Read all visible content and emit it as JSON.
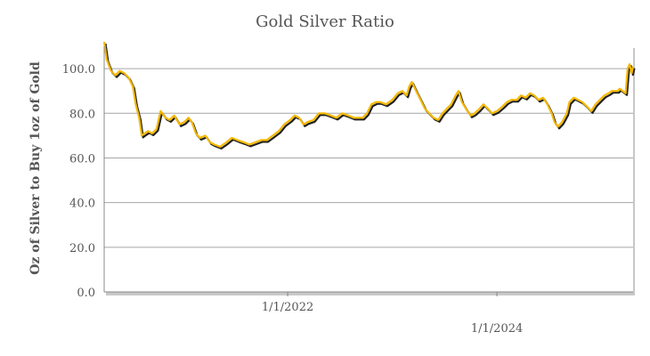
{
  "chart_data": {
    "type": "line",
    "title": "Gold Silver Ratio",
    "ylabel": "Oz of Silver to Buy 1oz of Gold",
    "xlabel": "",
    "ylim": [
      0,
      110
    ],
    "y_ticks": [
      "0.0",
      "20.0",
      "40.0",
      "60.0",
      "80.0",
      "100.0"
    ],
    "y_tick_values": [
      0,
      20,
      40,
      60,
      80,
      100
    ],
    "x_ticks": [
      "1/1/2022",
      "1/1/2024"
    ],
    "x_tick_values": [
      "2022-01-01",
      "2024-01-01"
    ],
    "xlim": [
      "2020-04-01",
      "2025-04-20"
    ],
    "grid": true,
    "legend": "none",
    "series": [
      {
        "color": "#f5b800",
        "shadow_color": "#222222",
        "points": [
          [
            "2020-04-01",
            112
          ],
          [
            "2020-04-10",
            104
          ],
          [
            "2020-04-25",
            99
          ],
          [
            "2020-05-10",
            97
          ],
          [
            "2020-05-25",
            99
          ],
          [
            "2020-06-10",
            98
          ],
          [
            "2020-06-25",
            96
          ],
          [
            "2020-07-10",
            92
          ],
          [
            "2020-07-20",
            84
          ],
          [
            "2020-08-01",
            78
          ],
          [
            "2020-08-10",
            70
          ],
          [
            "2020-08-20",
            71
          ],
          [
            "2020-09-01",
            72
          ],
          [
            "2020-09-15",
            71
          ],
          [
            "2020-10-01",
            73
          ],
          [
            "2020-10-15",
            81
          ],
          [
            "2020-11-01",
            78
          ],
          [
            "2020-11-15",
            77
          ],
          [
            "2020-12-01",
            79
          ],
          [
            "2020-12-20",
            75
          ],
          [
            "2021-01-05",
            76
          ],
          [
            "2021-01-20",
            78
          ],
          [
            "2021-02-01",
            76
          ],
          [
            "2021-02-15",
            71
          ],
          [
            "2021-03-01",
            69
          ],
          [
            "2021-03-20",
            70
          ],
          [
            "2021-04-05",
            67
          ],
          [
            "2021-04-20",
            66
          ],
          [
            "2021-05-10",
            65
          ],
          [
            "2021-06-01",
            67
          ],
          [
            "2021-06-20",
            69
          ],
          [
            "2021-07-10",
            68
          ],
          [
            "2021-08-01",
            67
          ],
          [
            "2021-08-20",
            66
          ],
          [
            "2021-09-10",
            67
          ],
          [
            "2021-10-01",
            68
          ],
          [
            "2021-10-20",
            68
          ],
          [
            "2021-11-10",
            70
          ],
          [
            "2021-12-01",
            72
          ],
          [
            "2021-12-20",
            75
          ],
          [
            "2022-01-10",
            77
          ],
          [
            "2022-01-25",
            79
          ],
          [
            "2022-02-10",
            78
          ],
          [
            "2022-02-25",
            75
          ],
          [
            "2022-03-10",
            76
          ],
          [
            "2022-04-01",
            77
          ],
          [
            "2022-04-20",
            80
          ],
          [
            "2022-05-10",
            80
          ],
          [
            "2022-06-01",
            79
          ],
          [
            "2022-06-20",
            78
          ],
          [
            "2022-07-10",
            80
          ],
          [
            "2022-08-01",
            79
          ],
          [
            "2022-08-20",
            78
          ],
          [
            "2022-09-05",
            78
          ],
          [
            "2022-09-20",
            78
          ],
          [
            "2022-10-05",
            80
          ],
          [
            "2022-10-20",
            84
          ],
          [
            "2022-11-05",
            85
          ],
          [
            "2022-11-20",
            85
          ],
          [
            "2022-12-10",
            84
          ],
          [
            "2023-01-01",
            86
          ],
          [
            "2023-01-20",
            89
          ],
          [
            "2023-02-05",
            90
          ],
          [
            "2023-02-20",
            88
          ],
          [
            "2023-03-01",
            92
          ],
          [
            "2023-03-10",
            94
          ],
          [
            "2023-03-25",
            90
          ],
          [
            "2023-04-10",
            86
          ],
          [
            "2023-04-25",
            82
          ],
          [
            "2023-05-10",
            80
          ],
          [
            "2023-05-25",
            78
          ],
          [
            "2023-06-10",
            77
          ],
          [
            "2023-06-25",
            80
          ],
          [
            "2023-07-10",
            82
          ],
          [
            "2023-07-25",
            84
          ],
          [
            "2023-08-10",
            88
          ],
          [
            "2023-08-20",
            90
          ],
          [
            "2023-09-01",
            85
          ],
          [
            "2023-09-15",
            82
          ],
          [
            "2023-10-01",
            79
          ],
          [
            "2023-10-15",
            80
          ],
          [
            "2023-11-01",
            82
          ],
          [
            "2023-11-15",
            84
          ],
          [
            "2023-12-01",
            82
          ],
          [
            "2023-12-15",
            80
          ],
          [
            "2024-01-01",
            81
          ],
          [
            "2024-01-20",
            83
          ],
          [
            "2024-02-05",
            85
          ],
          [
            "2024-02-20",
            86
          ],
          [
            "2024-03-10",
            86
          ],
          [
            "2024-03-25",
            88
          ],
          [
            "2024-04-10",
            87
          ],
          [
            "2024-04-25",
            89
          ],
          [
            "2024-05-10",
            88
          ],
          [
            "2024-05-25",
            86
          ],
          [
            "2024-06-10",
            87
          ],
          [
            "2024-06-25",
            84
          ],
          [
            "2024-07-10",
            80
          ],
          [
            "2024-07-20",
            76
          ],
          [
            "2024-08-01",
            74
          ],
          [
            "2024-08-15",
            76
          ],
          [
            "2024-09-01",
            80
          ],
          [
            "2024-09-10",
            85
          ],
          [
            "2024-09-25",
            87
          ],
          [
            "2024-10-10",
            86
          ],
          [
            "2024-10-25",
            85
          ],
          [
            "2024-11-10",
            83
          ],
          [
            "2024-11-25",
            81
          ],
          [
            "2024-12-10",
            84
          ],
          [
            "2024-12-25",
            86
          ],
          [
            "2025-01-10",
            88
          ],
          [
            "2025-01-25",
            89
          ],
          [
            "2025-02-05",
            90
          ],
          [
            "2025-02-15",
            90
          ],
          [
            "2025-02-25",
            90
          ],
          [
            "2025-03-05",
            91
          ],
          [
            "2025-03-15",
            90
          ],
          [
            "2025-03-25",
            89
          ],
          [
            "2025-04-01",
            100
          ],
          [
            "2025-04-08",
            102
          ],
          [
            "2025-04-15",
            98
          ],
          [
            "2025-04-20",
            101
          ]
        ]
      }
    ]
  }
}
